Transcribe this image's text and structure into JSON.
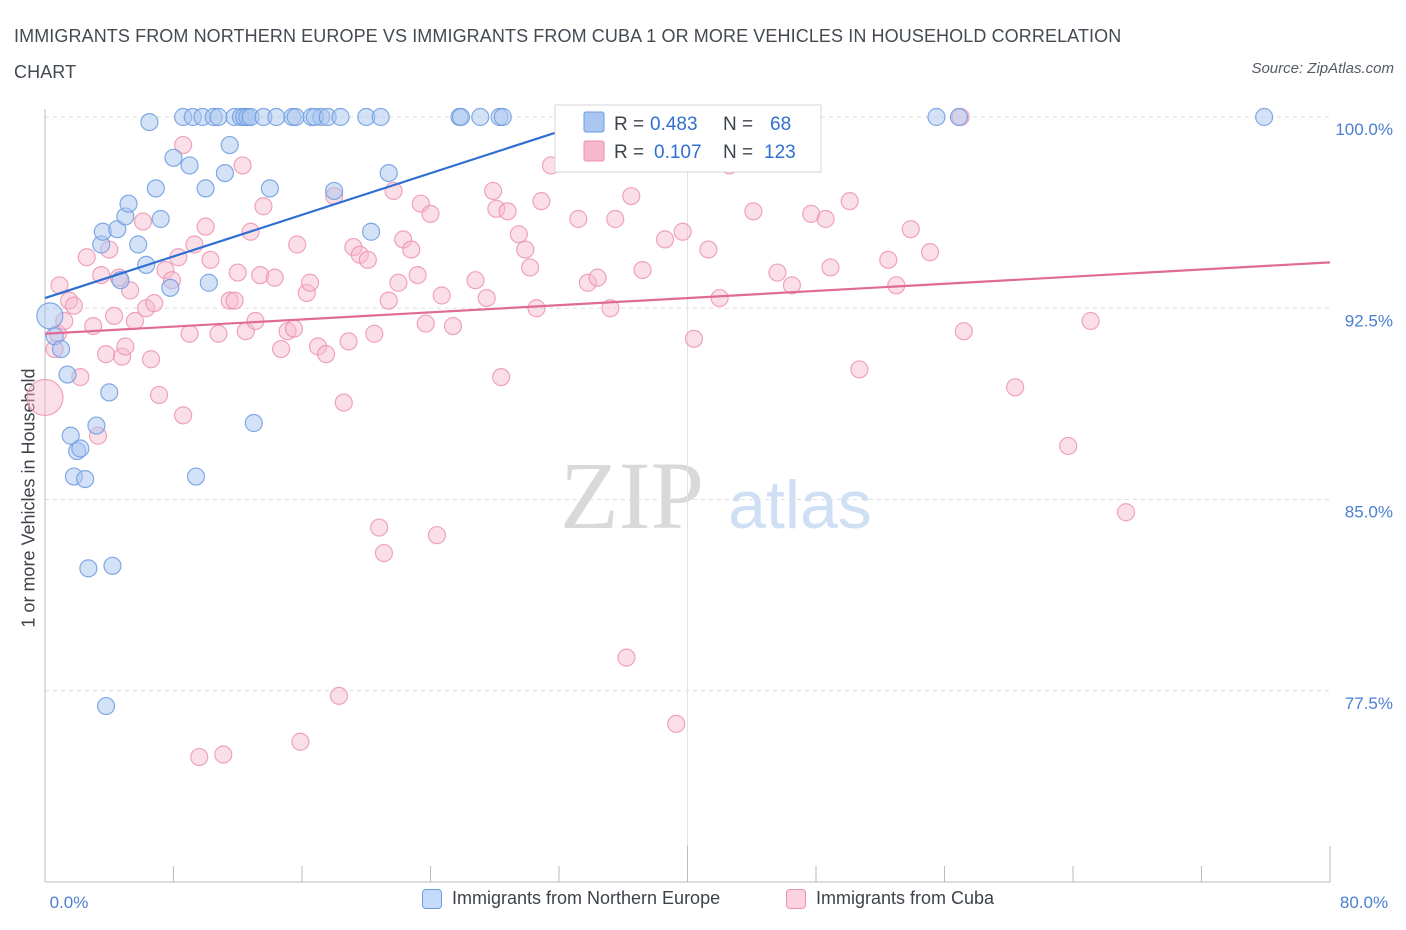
{
  "title": "IMMIGRANTS FROM NORTHERN EUROPE VS IMMIGRANTS FROM CUBA 1 OR MORE VEHICLES IN HOUSEHOLD CORRELATION CHART",
  "source": "Source: ZipAtlas.com",
  "watermark": {
    "zip": "ZIP",
    "atlas": "atlas"
  },
  "colors": {
    "blue_fill": "#a9c6f0",
    "blue_stroke": "#6c9be0",
    "blue_line": "#2f6fd1",
    "pink_fill": "#f6b8cb",
    "pink_stroke": "#ec8fac",
    "pink_line": "#e06b96",
    "tick_text": "#4a7fd0"
  },
  "legend": {
    "blue": {
      "r_label": "R = ",
      "r": "0.483",
      "n_label": "N = ",
      "n": "68"
    },
    "pink": {
      "r_label": "R = ",
      "r": "0.107",
      "n_label": "N = ",
      "n": "123"
    }
  },
  "chart_data": {
    "type": "scatter",
    "title": "IMMIGRANTS FROM NORTHERN EUROPE VS IMMIGRANTS FROM CUBA 1 OR MORE VEHICLES IN HOUSEHOLD CORRELATION CHART",
    "xlabel": "",
    "ylabel": "1 or more Vehicles in Household",
    "xlim": [
      0,
      80
    ],
    "ylim": [
      70,
      100
    ],
    "x_tick_labels": [
      "0.0%",
      "80.0%"
    ],
    "y_ticks": [
      77.5,
      85.0,
      92.5,
      100.0
    ],
    "y_tick_labels": [
      "77.5%",
      "85.0%",
      "92.5%",
      "100.0%"
    ],
    "grid": true,
    "legend_position": "top-center",
    "series": [
      {
        "name": "Immigrants from Northern Europe",
        "color": "#a9c6f0",
        "trend": {
          "x": [
            0,
            34.8
          ],
          "y": [
            92.9,
            100.0
          ]
        },
        "points": [
          [
            0.3,
            92.2
          ],
          [
            0.6,
            91.4
          ],
          [
            1.0,
            90.9
          ],
          [
            1.4,
            89.9
          ],
          [
            1.6,
            87.5
          ],
          [
            1.8,
            85.9
          ],
          [
            2.0,
            86.9
          ],
          [
            2.2,
            87.0
          ],
          [
            2.5,
            85.8
          ],
          [
            2.7,
            82.3
          ],
          [
            3.2,
            87.9
          ],
          [
            3.5,
            95.0
          ],
          [
            3.6,
            95.5
          ],
          [
            3.8,
            76.9
          ],
          [
            4.0,
            89.2
          ],
          [
            4.2,
            82.4
          ],
          [
            4.5,
            95.6
          ],
          [
            4.7,
            93.6
          ],
          [
            5.0,
            96.1
          ],
          [
            5.2,
            96.6
          ],
          [
            5.8,
            95.0
          ],
          [
            6.3,
            94.2
          ],
          [
            6.5,
            99.8
          ],
          [
            6.9,
            97.2
          ],
          [
            7.2,
            96.0
          ],
          [
            7.8,
            93.3
          ],
          [
            8.0,
            98.4
          ],
          [
            8.6,
            100.0
          ],
          [
            9.2,
            100.0
          ],
          [
            9.0,
            98.1
          ],
          [
            9.4,
            85.9
          ],
          [
            9.8,
            100.0
          ],
          [
            10.0,
            97.2
          ],
          [
            10.2,
            93.5
          ],
          [
            10.5,
            100.0
          ],
          [
            10.8,
            100.0
          ],
          [
            11.2,
            97.8
          ],
          [
            11.5,
            98.9
          ],
          [
            11.8,
            100.0
          ],
          [
            12.2,
            100.0
          ],
          [
            12.4,
            100.0
          ],
          [
            12.6,
            100.0
          ],
          [
            12.8,
            100.0
          ],
          [
            13.0,
            88.0
          ],
          [
            13.6,
            100.0
          ],
          [
            14.0,
            97.2
          ],
          [
            14.4,
            100.0
          ],
          [
            15.4,
            100.0
          ],
          [
            15.6,
            100.0
          ],
          [
            16.6,
            100.0
          ],
          [
            17.2,
            100.0
          ],
          [
            16.8,
            100.0
          ],
          [
            17.6,
            100.0
          ],
          [
            18.0,
            97.1
          ],
          [
            18.4,
            100.0
          ],
          [
            20.3,
            95.5
          ],
          [
            20.0,
            100.0
          ],
          [
            20.9,
            100.0
          ],
          [
            21.4,
            97.8
          ],
          [
            25.8,
            100.0
          ],
          [
            25.9,
            100.0
          ],
          [
            27.1,
            100.0
          ],
          [
            28.3,
            100.0
          ],
          [
            28.5,
            100.0
          ],
          [
            34.4,
            100.0
          ],
          [
            55.5,
            100.0
          ],
          [
            56.9,
            100.0
          ],
          [
            75.9,
            100.0
          ]
        ]
      },
      {
        "name": "Immigrants from Cuba",
        "color": "#f6b8cb",
        "trend": {
          "x": [
            0,
            80
          ],
          "y": [
            91.5,
            94.3
          ]
        },
        "points": [
          [
            0.0,
            89.0
          ],
          [
            0.6,
            90.9
          ],
          [
            0.8,
            91.5
          ],
          [
            0.9,
            93.4
          ],
          [
            1.2,
            92.0
          ],
          [
            1.5,
            92.8
          ],
          [
            1.8,
            92.6
          ],
          [
            2.2,
            89.8
          ],
          [
            2.6,
            94.5
          ],
          [
            3.0,
            91.8
          ],
          [
            3.3,
            87.5
          ],
          [
            3.5,
            93.8
          ],
          [
            3.8,
            90.7
          ],
          [
            4.0,
            94.8
          ],
          [
            4.3,
            92.2
          ],
          [
            4.6,
            93.7
          ],
          [
            4.8,
            90.6
          ],
          [
            5.0,
            91.0
          ],
          [
            5.3,
            93.2
          ],
          [
            5.6,
            92.0
          ],
          [
            6.1,
            95.9
          ],
          [
            6.3,
            92.5
          ],
          [
            6.6,
            90.5
          ],
          [
            6.8,
            92.7
          ],
          [
            7.1,
            89.1
          ],
          [
            7.5,
            94.0
          ],
          [
            7.9,
            93.6
          ],
          [
            8.3,
            94.5
          ],
          [
            8.6,
            98.9
          ],
          [
            8.6,
            88.3
          ],
          [
            9.0,
            91.5
          ],
          [
            9.3,
            95.0
          ],
          [
            9.6,
            74.9
          ],
          [
            10.0,
            95.7
          ],
          [
            10.3,
            94.4
          ],
          [
            10.8,
            91.5
          ],
          [
            11.1,
            75.0
          ],
          [
            11.5,
            92.8
          ],
          [
            11.8,
            92.8
          ],
          [
            12.0,
            93.9
          ],
          [
            12.3,
            98.1
          ],
          [
            12.5,
            91.6
          ],
          [
            12.8,
            95.5
          ],
          [
            13.1,
            92.0
          ],
          [
            13.4,
            93.8
          ],
          [
            13.6,
            96.5
          ],
          [
            14.3,
            93.7
          ],
          [
            14.7,
            90.9
          ],
          [
            15.1,
            91.6
          ],
          [
            15.5,
            91.7
          ],
          [
            15.7,
            95.0
          ],
          [
            15.9,
            75.5
          ],
          [
            16.3,
            93.1
          ],
          [
            16.5,
            93.5
          ],
          [
            17.0,
            91.0
          ],
          [
            17.5,
            90.7
          ],
          [
            18.0,
            96.9
          ],
          [
            18.3,
            77.3
          ],
          [
            18.6,
            88.8
          ],
          [
            18.9,
            91.2
          ],
          [
            19.2,
            94.9
          ],
          [
            19.6,
            94.6
          ],
          [
            20.1,
            94.4
          ],
          [
            20.5,
            91.5
          ],
          [
            20.8,
            83.9
          ],
          [
            21.1,
            82.9
          ],
          [
            21.4,
            92.8
          ],
          [
            21.7,
            97.1
          ],
          [
            22.0,
            93.5
          ],
          [
            22.3,
            95.2
          ],
          [
            22.8,
            94.8
          ],
          [
            23.2,
            93.8
          ],
          [
            23.4,
            96.6
          ],
          [
            23.7,
            91.9
          ],
          [
            24.0,
            96.2
          ],
          [
            24.4,
            83.6
          ],
          [
            24.7,
            93.0
          ],
          [
            25.4,
            91.8
          ],
          [
            26.8,
            93.6
          ],
          [
            27.5,
            92.9
          ],
          [
            27.9,
            97.1
          ],
          [
            28.1,
            96.4
          ],
          [
            28.4,
            89.8
          ],
          [
            28.8,
            96.3
          ],
          [
            29.5,
            95.4
          ],
          [
            29.9,
            94.8
          ],
          [
            30.2,
            94.1
          ],
          [
            30.6,
            92.5
          ],
          [
            30.9,
            96.7
          ],
          [
            31.5,
            98.1
          ],
          [
            33.2,
            96.0
          ],
          [
            33.8,
            93.5
          ],
          [
            34.4,
            93.7
          ],
          [
            35.2,
            92.5
          ],
          [
            35.5,
            96.0
          ],
          [
            36.2,
            78.8
          ],
          [
            36.5,
            96.9
          ],
          [
            37.2,
            94.0
          ],
          [
            38.6,
            95.2
          ],
          [
            39.0,
            98.2
          ],
          [
            39.3,
            76.2
          ],
          [
            39.7,
            95.5
          ],
          [
            40.4,
            91.3
          ],
          [
            41.3,
            94.8
          ],
          [
            42.0,
            92.9
          ],
          [
            42.6,
            98.1
          ],
          [
            44.1,
            96.3
          ],
          [
            45.6,
            93.9
          ],
          [
            46.5,
            93.4
          ],
          [
            47.7,
            96.2
          ],
          [
            48.6,
            96.0
          ],
          [
            48.9,
            94.1
          ],
          [
            50.1,
            96.7
          ],
          [
            50.7,
            90.1
          ],
          [
            52.5,
            94.4
          ],
          [
            53.0,
            93.4
          ],
          [
            53.9,
            95.6
          ],
          [
            55.1,
            94.7
          ],
          [
            57.0,
            100.0
          ],
          [
            57.2,
            91.6
          ],
          [
            60.4,
            89.4
          ],
          [
            63.7,
            87.1
          ],
          [
            65.1,
            92.0
          ],
          [
            67.3,
            84.5
          ],
          [
            42.3,
            98.3
          ]
        ]
      }
    ]
  },
  "bottom_legend": {
    "blue_label": "Immigrants from Northern Europe",
    "pink_label": "Immigrants from Cuba"
  }
}
